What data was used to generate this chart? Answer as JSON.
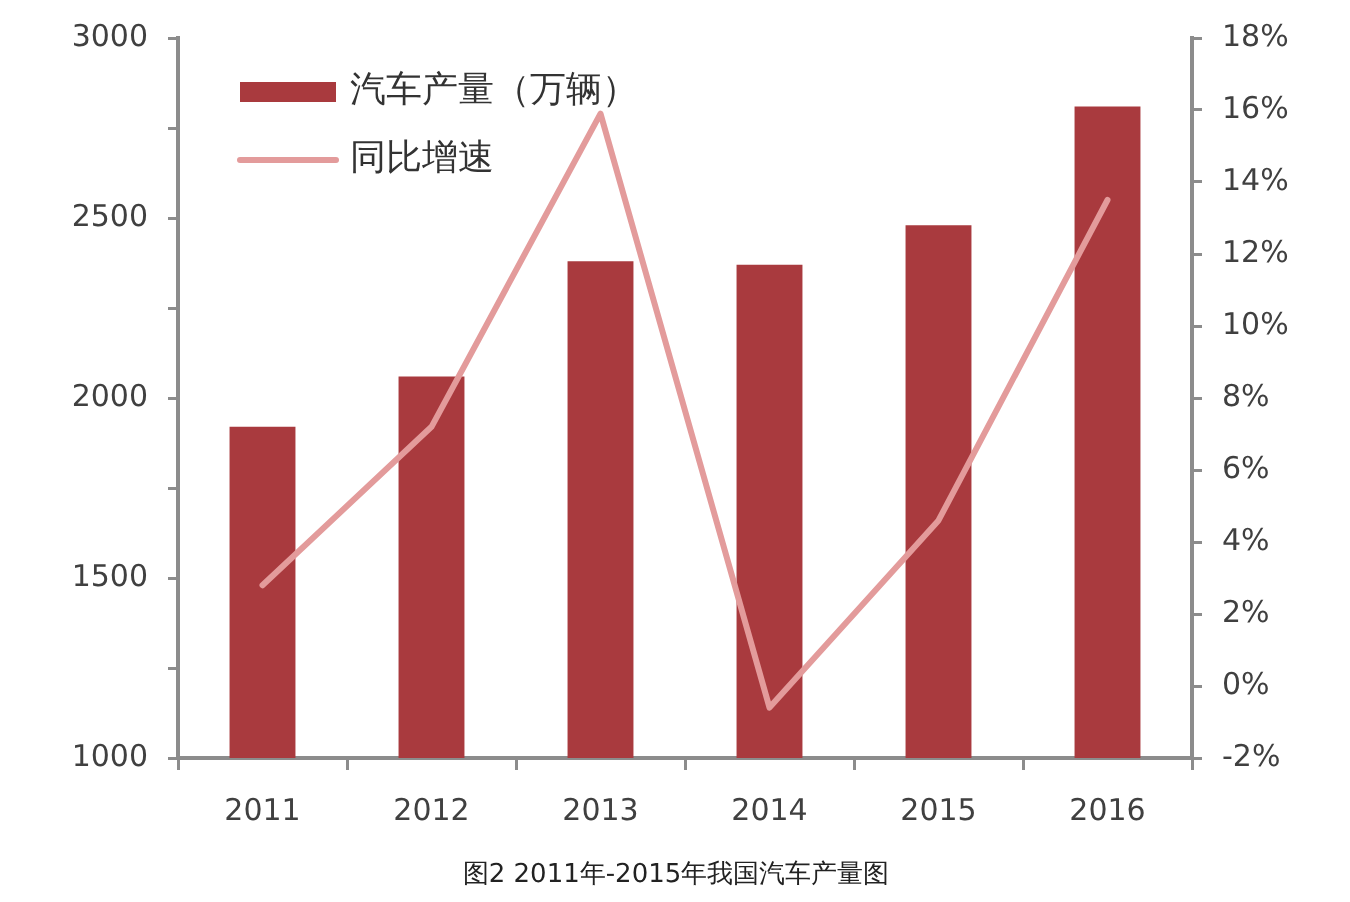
{
  "chart_data": {
    "type": "bar",
    "categories": [
      "2011",
      "2012",
      "2013",
      "2014",
      "2015",
      "2016"
    ],
    "series": [
      {
        "name": "汽车产量（万辆）",
        "color": "#a93a3e",
        "values": [
          1920,
          2060,
          2380,
          2370,
          2480,
          2810
        ]
      },
      {
        "name": "同比增速",
        "type": "line",
        "axis": "y2",
        "color": "#e39b9b",
        "values": [
          2.8,
          7.2,
          15.9,
          -0.6,
          4.6,
          13.5
        ]
      }
    ],
    "ylim": [
      1000,
      3000
    ],
    "yticks": [
      1000,
      {
        "value": 1250,
        "label": null
      },
      1500,
      {
        "value": 1750,
        "label": null
      },
      2000,
      {
        "value": 2250,
        "label": null
      },
      2500,
      {
        "value": 2750,
        "label": null
      },
      3000
    ],
    "y2lim": [
      -2,
      18
    ],
    "y2ticks": [
      {
        "value": -2,
        "label": "-2%"
      },
      {
        "value": 0,
        "label": "0%"
      },
      {
        "value": 2,
        "label": "2%"
      },
      {
        "value": 4,
        "label": "4%"
      },
      {
        "value": 6,
        "label": "6%"
      },
      {
        "value": 8,
        "label": "8%"
      },
      {
        "value": 10,
        "label": "10%"
      },
      {
        "value": 12,
        "label": "12%"
      },
      {
        "value": 14,
        "label": "14%"
      },
      {
        "value": 16,
        "label": "16%"
      },
      {
        "value": 18,
        "label": "18%"
      }
    ],
    "grid": false,
    "legend": "top left",
    "marker": "none",
    "annotations": [
      "图2 2011年-2015年我国汽车产量图"
    ]
  }
}
